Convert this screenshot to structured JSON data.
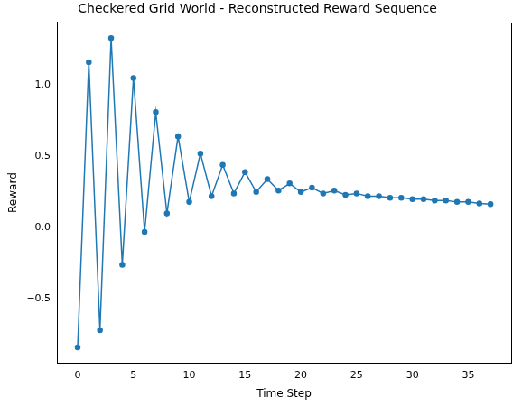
{
  "chart_data": {
    "type": "line",
    "title": "Checkered Grid World - Reconstructed Reward Sequence",
    "x_label": "Time Step",
    "y_label": "Reward",
    "x": [
      0,
      1,
      2,
      3,
      4,
      5,
      6,
      7,
      8,
      9,
      10,
      11,
      12,
      13,
      14,
      15,
      16,
      17,
      18,
      19,
      20,
      21,
      22,
      23,
      24,
      25,
      26,
      27,
      28,
      29,
      30,
      31,
      32,
      33,
      34,
      35,
      36,
      37
    ],
    "values": [
      -0.84,
      1.16,
      -0.72,
      1.33,
      -0.26,
      1.05,
      -0.03,
      0.81,
      0.1,
      0.64,
      0.18,
      0.52,
      0.22,
      0.44,
      0.24,
      0.39,
      0.25,
      0.34,
      0.26,
      0.31,
      0.25,
      0.28,
      0.24,
      0.26,
      0.23,
      0.24,
      0.22,
      0.22,
      0.21,
      0.21,
      0.2,
      0.2,
      0.19,
      0.19,
      0.18,
      0.18,
      0.17,
      0.165
    ],
    "color": "#1f77b4",
    "marker": "circle",
    "line_style": "solid",
    "xlim": [
      -1.85,
      38.85
    ],
    "xticks": [
      0,
      5,
      10,
      15,
      20,
      25,
      30,
      35
    ],
    "ylim": [
      -0.95,
      1.44
    ],
    "yticks": [
      {
        "value": -0.5,
        "label": "−0.5"
      },
      {
        "value": 0,
        "label": "0.0"
      },
      {
        "value": 0.5,
        "label": "0.5"
      },
      {
        "value": 1,
        "label": "1.0"
      }
    ],
    "grid": false
  }
}
